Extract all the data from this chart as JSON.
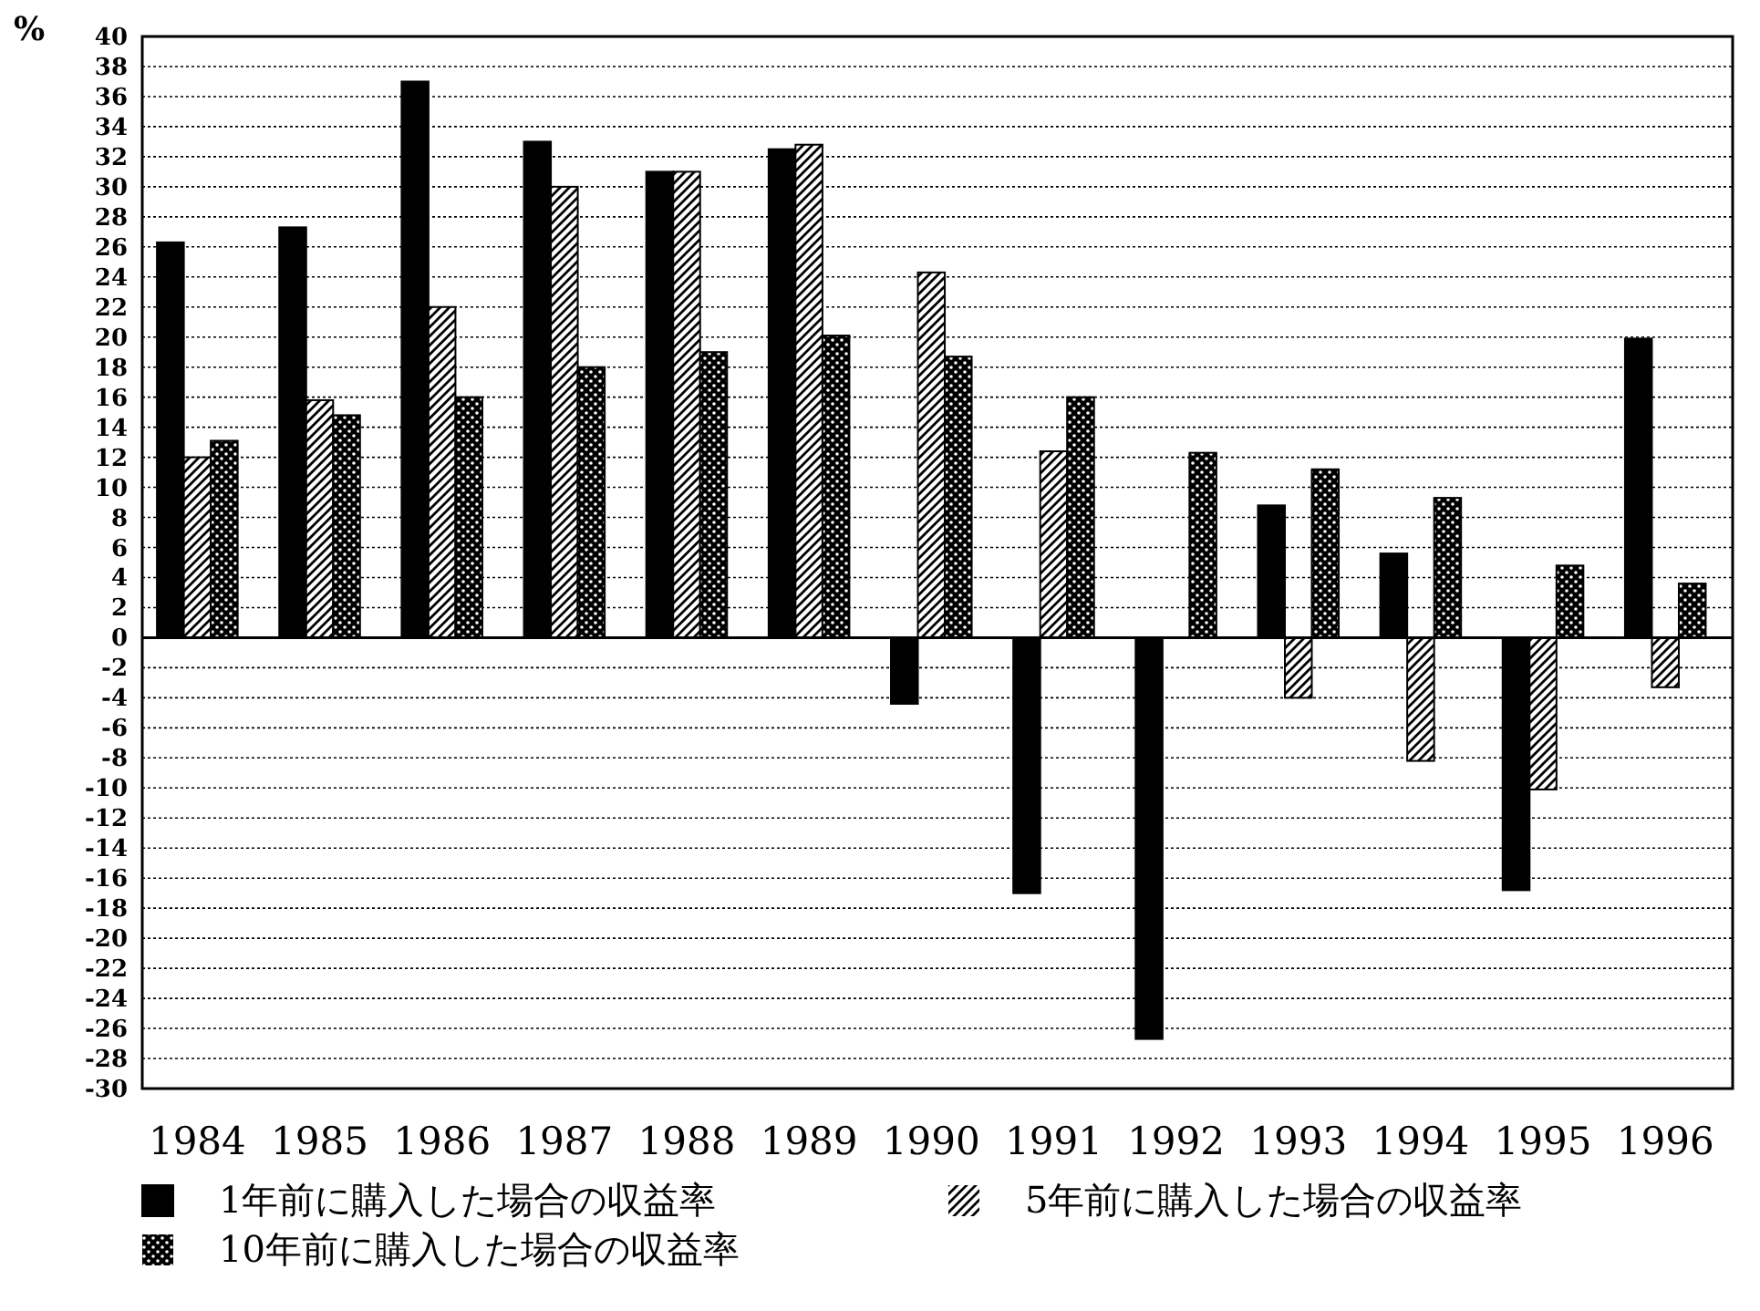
{
  "chart_data": {
    "type": "bar",
    "ylabel": "%",
    "categories": [
      "1984",
      "1985",
      "1986",
      "1987",
      "1988",
      "1989",
      "1990",
      "1991",
      "1992",
      "1993",
      "1994",
      "1995",
      "1996"
    ],
    "series": [
      {
        "name": "1年前に購入した場合の収益率",
        "color": "#000000",
        "values": [
          26.3,
          27.3,
          37,
          33,
          31,
          32.5,
          -4.4,
          -17,
          -26.7,
          8.8,
          5.6,
          -16.8,
          19.9
        ]
      },
      {
        "name": "5年前に購入した場合の収益率",
        "color": "#000000",
        "values": [
          12,
          15.8,
          22,
          30,
          31,
          32.8,
          24.3,
          12.4,
          null,
          -4,
          -8.2,
          -10.1,
          -3.3
        ]
      },
      {
        "name": "10年前に購入した場合の収益率",
        "color": "#000000",
        "values": [
          13.1,
          14.8,
          16,
          18,
          19,
          20.1,
          18.7,
          16,
          12.3,
          11.2,
          9.3,
          4.8,
          3.6
        ]
      }
    ],
    "ylim": [
      -30,
      40
    ],
    "yticks": [
      -30,
      -28,
      -26,
      -24,
      -22,
      -20,
      -18,
      -16,
      -14,
      -12,
      -10,
      -8,
      -6,
      -4,
      -2,
      0,
      2,
      4,
      6,
      8,
      10,
      12,
      14,
      16,
      18,
      20,
      22,
      24,
      26,
      28,
      30,
      32,
      34,
      36,
      38,
      40
    ],
    "grid": "y",
    "legend": "bottom"
  }
}
